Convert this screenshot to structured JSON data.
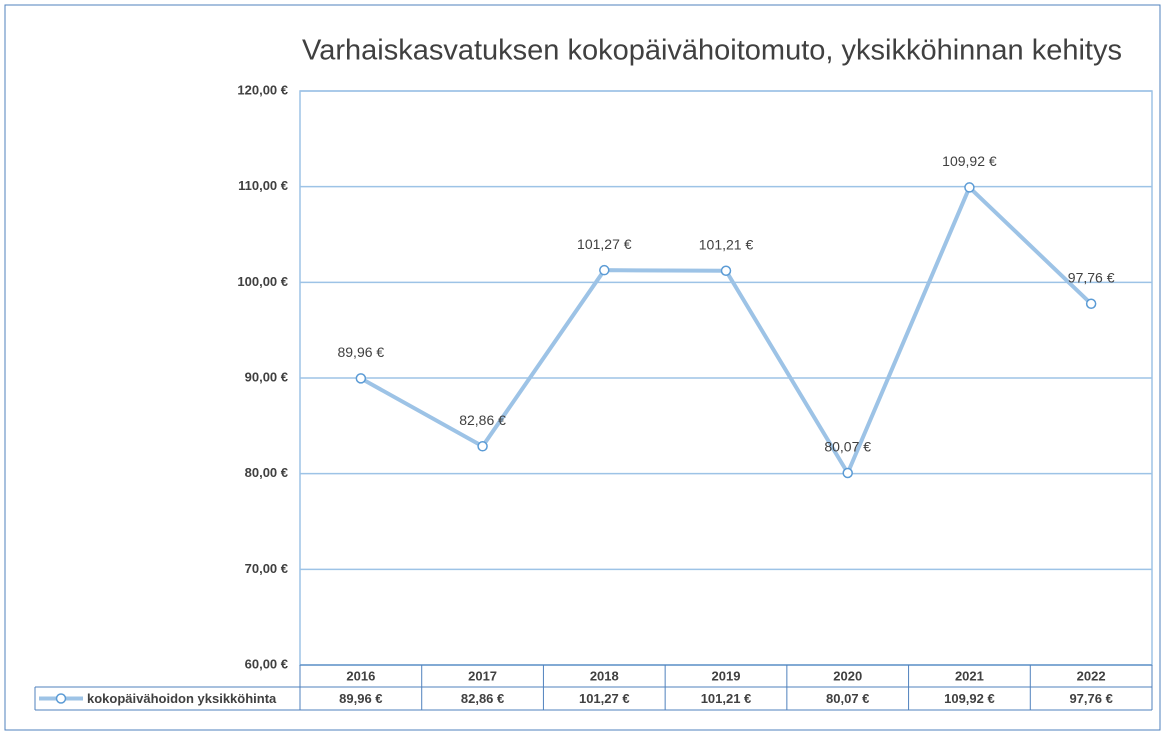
{
  "chart_data": {
    "type": "line",
    "title": "Varhaiskasvatuksen kokopäivähoitomuto, yksikköhinnan kehitys",
    "categories": [
      "2016",
      "2017",
      "2018",
      "2019",
      "2020",
      "2021",
      "2022"
    ],
    "series": [
      {
        "name": "kokopäivähoidon yksikköhinta",
        "color": "#9dc3e6",
        "values": [
          89.96,
          82.86,
          101.27,
          101.21,
          80.07,
          109.92,
          97.76
        ],
        "value_labels": [
          "89,96 €",
          "82,86 €",
          "101,27 €",
          "101,21 €",
          "80,07 €",
          "109,92 €",
          "97,76 €"
        ]
      }
    ],
    "ylim": [
      60,
      120
    ],
    "yticks": [
      {
        "value": 60,
        "label": "60,00 €"
      },
      {
        "value": 70,
        "label": "70,00 €"
      },
      {
        "value": 80,
        "label": "80,00 €"
      },
      {
        "value": 90,
        "label": "90,00 €"
      },
      {
        "value": 100,
        "label": "100,00 €"
      },
      {
        "value": 110,
        "label": "110,00 €"
      },
      {
        "value": 120,
        "label": "120,00 €"
      }
    ],
    "grid": true,
    "data_table": true
  }
}
